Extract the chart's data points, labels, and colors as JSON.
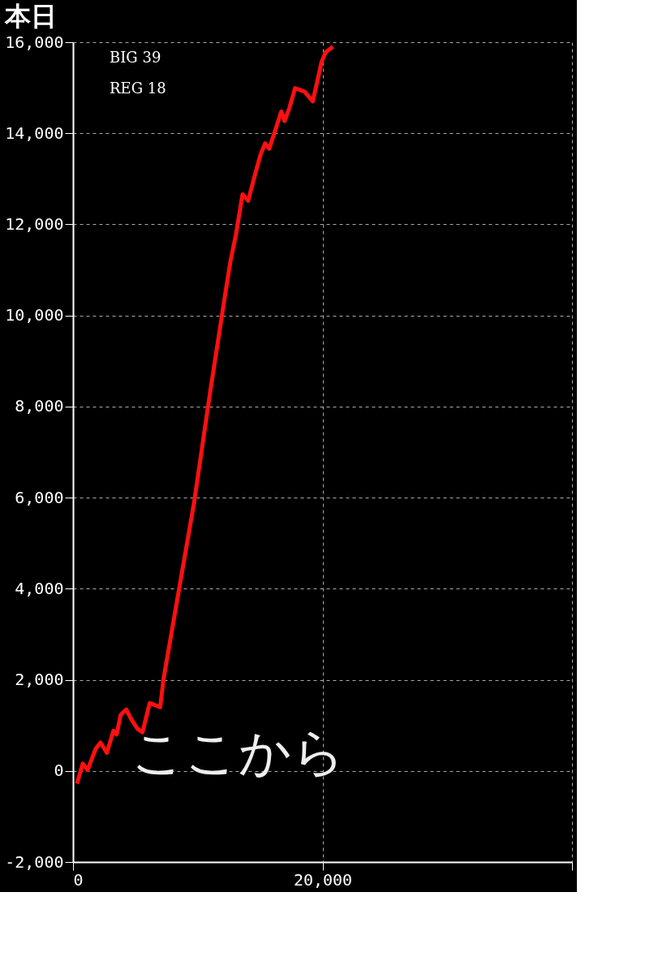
{
  "chart_data": {
    "type": "line",
    "title": "本日",
    "annotations": [
      "BIG 39",
      "REG 18",
      {
        "text": "ここから",
        "x": 4660,
        "y": 1140
      }
    ],
    "series": [
      {
        "color": "#ff1010",
        "x": [
          320,
          780,
          1170,
          1810,
          2200,
          2720,
          3240,
          3500,
          3820,
          4270,
          4660,
          5180,
          5570,
          6150,
          6990,
          7250,
          9710,
          11000,
          12170,
          12620,
          13070,
          13590,
          14040,
          14500,
          15020,
          15400,
          15730,
          16180,
          16700,
          16960,
          17350,
          17800,
          18580,
          19220,
          19930,
          20260,
          20840
        ],
        "values": [
          -280,
          160,
          20,
          480,
          620,
          400,
          880,
          800,
          1230,
          1350,
          1140,
          920,
          850,
          1490,
          1400,
          2010,
          5900,
          8330,
          10410,
          11190,
          11790,
          12660,
          12520,
          13000,
          13520,
          13780,
          13660,
          14040,
          14480,
          14270,
          14560,
          14990,
          14910,
          14700,
          15570,
          15780,
          15900
        ]
      }
    ],
    "xlim": [
      0,
      40000
    ],
    "xticks": [
      0,
      {
        "value": 20000,
        "label": "20,000"
      },
      {
        "value": 40000,
        "label": null
      }
    ],
    "ylim": [
      -2000,
      16000
    ],
    "yticks": [
      {
        "value": -2000,
        "label": "-2,000"
      },
      0,
      {
        "value": 2000,
        "label": "2,000"
      },
      {
        "value": 4000,
        "label": "4,000"
      },
      {
        "value": 6000,
        "label": "6,000"
      },
      {
        "value": 8000,
        "label": "8,000"
      },
      {
        "value": 10000,
        "label": "10,000"
      },
      {
        "value": 12000,
        "label": "12,000"
      },
      {
        "value": 14000,
        "label": "14,000"
      },
      {
        "value": 16000,
        "label": "16,000"
      }
    ],
    "grid": true,
    "marker": "none",
    "line_style": "solid"
  }
}
